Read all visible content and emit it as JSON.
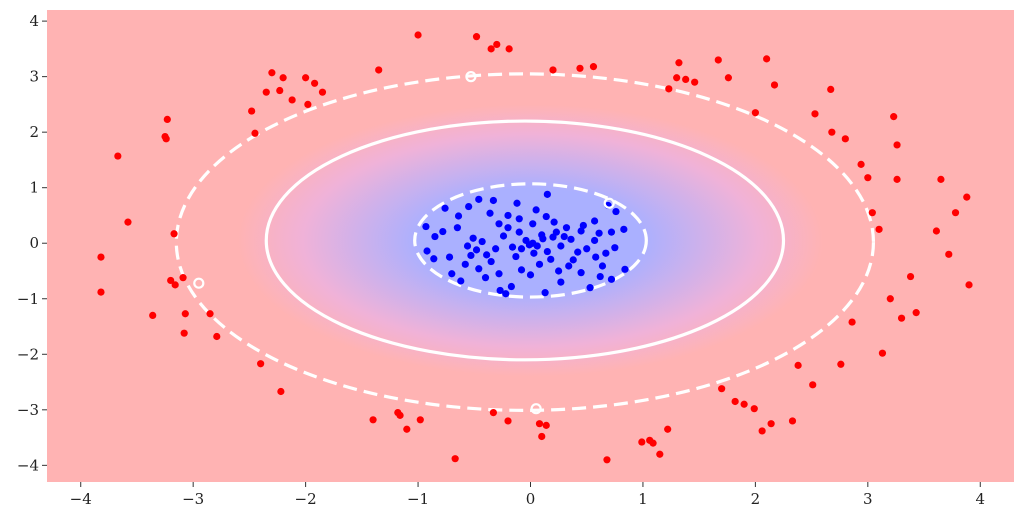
{
  "chart_data": {
    "type": "scatter",
    "title": "",
    "xlabel": "",
    "ylabel": "",
    "xlim": [
      -4.3,
      4.3
    ],
    "ylim": [
      -4.3,
      4.2
    ],
    "grid": true,
    "xticks": [
      -4,
      -3,
      -2,
      -1,
      0,
      1,
      2,
      3,
      4
    ],
    "yticks": [
      -4,
      -3,
      -2,
      -1,
      0,
      1,
      2,
      3,
      4
    ],
    "xtick_labels": [
      "−4",
      "−3",
      "−2",
      "−1",
      "0",
      "1",
      "2",
      "3",
      "4"
    ],
    "ytick_labels": [
      "−4",
      "−3",
      "−2",
      "−1",
      "0",
      "1",
      "2",
      "3",
      "4"
    ],
    "background": {
      "outer_color": "#ffb3b3",
      "inner_color": "#aab0ff",
      "description": "decision function shading, blue near origin fading to red"
    },
    "decision_boundary": {
      "type": "ellipse",
      "center": [
        -0.05,
        0.05
      ],
      "rx": 2.3,
      "ry": 2.15,
      "color": "#ffffff",
      "style": "solid"
    },
    "margins": [
      {
        "type": "ellipse",
        "center": [
          0.0,
          0.05
        ],
        "rx": 1.03,
        "ry": 1.02,
        "color": "#ffffff",
        "style": "dashed"
      },
      {
        "type": "ellipse",
        "center": [
          -0.05,
          0.02
        ],
        "rx": 3.1,
        "ry": 3.03,
        "color": "#ffffff",
        "style": "dashed"
      }
    ],
    "support_vectors": [
      [
        -0.53,
        3.0
      ],
      [
        -2.95,
        -0.72
      ],
      [
        0.05,
        -2.98
      ],
      [
        0.7,
        0.72
      ]
    ],
    "series": [
      {
        "color": "#0000ff",
        "points": [
          [
            -0.93,
            0.3
          ],
          [
            -0.76,
            0.63
          ],
          [
            -0.78,
            0.21
          ],
          [
            -0.55,
            0.66
          ],
          [
            -0.64,
            0.49
          ],
          [
            -0.85,
            0.12
          ],
          [
            -0.46,
            0.79
          ],
          [
            -0.12,
            0.72
          ],
          [
            0.15,
            0.88
          ],
          [
            -0.33,
            0.77
          ],
          [
            -0.36,
            0.54
          ],
          [
            -0.28,
            0.35
          ],
          [
            -0.2,
            0.28
          ],
          [
            -0.1,
            0.2
          ],
          [
            0.02,
            0.35
          ],
          [
            0.14,
            0.48
          ],
          [
            0.21,
            0.38
          ],
          [
            0.32,
            0.28
          ],
          [
            0.45,
            0.22
          ],
          [
            0.57,
            0.4
          ],
          [
            0.61,
            0.18
          ],
          [
            0.72,
            0.2
          ],
          [
            0.83,
            0.25
          ],
          [
            0.76,
            0.57
          ],
          [
            0.69,
            0.68
          ],
          [
            -0.92,
            -0.14
          ],
          [
            -0.86,
            -0.28
          ],
          [
            -0.72,
            -0.25
          ],
          [
            -0.58,
            -0.38
          ],
          [
            -0.7,
            -0.55
          ],
          [
            -0.62,
            -0.68
          ],
          [
            -0.46,
            -0.46
          ],
          [
            -0.4,
            -0.62
          ],
          [
            -0.28,
            -0.55
          ],
          [
            -0.27,
            -0.85
          ],
          [
            -0.17,
            -0.78
          ],
          [
            -0.08,
            -0.48
          ],
          [
            0.0,
            -0.57
          ],
          [
            0.08,
            -0.38
          ],
          [
            0.18,
            -0.29
          ],
          [
            0.25,
            -0.5
          ],
          [
            0.34,
            -0.41
          ],
          [
            0.45,
            -0.53
          ],
          [
            0.53,
            -0.8
          ],
          [
            0.64,
            -0.41
          ],
          [
            0.72,
            -0.65
          ],
          [
            0.84,
            -0.47
          ],
          [
            0.13,
            -0.89
          ],
          [
            -0.22,
            -0.91
          ],
          [
            -0.39,
            -0.21
          ],
          [
            -0.31,
            -0.1
          ],
          [
            -0.16,
            -0.07
          ],
          [
            -0.04,
            0.05
          ],
          [
            0.06,
            -0.05
          ],
          [
            0.11,
            0.08
          ],
          [
            0.2,
            0.11
          ],
          [
            0.27,
            -0.05
          ],
          [
            0.36,
            0.07
          ],
          [
            0.42,
            -0.16
          ],
          [
            0.5,
            -0.1
          ],
          [
            0.58,
            -0.25
          ],
          [
            0.67,
            -0.18
          ],
          [
            0.75,
            -0.08
          ],
          [
            -0.51,
            0.09
          ],
          [
            -0.43,
            0.03
          ],
          [
            -0.48,
            -0.12
          ],
          [
            -0.56,
            -0.05
          ],
          [
            -0.24,
            0.13
          ],
          [
            -0.13,
            -0.24
          ],
          [
            0.03,
            -0.18
          ],
          [
            0.15,
            -0.15
          ],
          [
            0.23,
            0.2
          ],
          [
            -0.01,
            -0.03
          ],
          [
            0.02,
            0.0
          ],
          [
            -0.08,
            -0.1
          ],
          [
            0.1,
            0.15
          ],
          [
            0.3,
            0.12
          ],
          [
            -0.35,
            -0.33
          ],
          [
            0.47,
            0.32
          ],
          [
            0.57,
            0.05
          ],
          [
            -0.65,
            0.28
          ],
          [
            -0.2,
            0.5
          ],
          [
            0.05,
            0.6
          ],
          [
            0.38,
            -0.3
          ],
          [
            -0.53,
            -0.22
          ],
          [
            0.62,
            -0.6
          ],
          [
            -0.1,
            0.44
          ],
          [
            0.27,
            -0.7
          ]
        ]
      },
      {
        "color": "#ff0000",
        "points": [
          [
            -1.0,
            3.75
          ],
          [
            -0.48,
            3.72
          ],
          [
            -0.3,
            3.58
          ],
          [
            -0.35,
            3.5
          ],
          [
            -0.19,
            3.5
          ],
          [
            0.2,
            3.12
          ],
          [
            0.44,
            3.15
          ],
          [
            0.56,
            3.18
          ],
          [
            1.32,
            3.25
          ],
          [
            1.3,
            2.98
          ],
          [
            1.38,
            2.95
          ],
          [
            1.46,
            2.9
          ],
          [
            1.67,
            3.3
          ],
          [
            1.76,
            2.98
          ],
          [
            2.1,
            3.32
          ],
          [
            2.17,
            2.85
          ],
          [
            1.23,
            2.78
          ],
          [
            -1.35,
            3.12
          ],
          [
            -2.3,
            3.07
          ],
          [
            -2.2,
            2.98
          ],
          [
            -2.0,
            2.98
          ],
          [
            -1.92,
            2.88
          ],
          [
            -1.85,
            2.72
          ],
          [
            -2.35,
            2.72
          ],
          [
            -2.23,
            2.75
          ],
          [
            -2.12,
            2.58
          ],
          [
            -1.98,
            2.5
          ],
          [
            -2.48,
            2.38
          ],
          [
            -2.45,
            1.98
          ],
          [
            -3.23,
            2.23
          ],
          [
            -3.25,
            1.92
          ],
          [
            -3.24,
            1.88
          ],
          [
            -3.67,
            1.57
          ],
          [
            -3.58,
            0.38
          ],
          [
            -3.17,
            0.17
          ],
          [
            -3.82,
            -0.25
          ],
          [
            -3.82,
            -0.88
          ],
          [
            -3.2,
            -0.67
          ],
          [
            -3.16,
            -0.75
          ],
          [
            -3.09,
            -0.62
          ],
          [
            -3.36,
            -1.3
          ],
          [
            -3.07,
            -1.27
          ],
          [
            -3.08,
            -1.62
          ],
          [
            -2.85,
            -1.27
          ],
          [
            -2.79,
            -1.68
          ],
          [
            -2.4,
            -2.17
          ],
          [
            -2.22,
            -2.67
          ],
          [
            -1.4,
            -3.18
          ],
          [
            -1.18,
            -3.05
          ],
          [
            -1.16,
            -3.1
          ],
          [
            -1.1,
            -3.35
          ],
          [
            -0.98,
            -3.18
          ],
          [
            -0.67,
            -3.88
          ],
          [
            -0.33,
            -3.05
          ],
          [
            -0.2,
            -3.2
          ],
          [
            0.08,
            -3.25
          ],
          [
            0.14,
            -3.28
          ],
          [
            0.1,
            -3.48
          ],
          [
            0.68,
            -3.9
          ],
          [
            0.99,
            -3.58
          ],
          [
            1.06,
            -3.55
          ],
          [
            1.09,
            -3.6
          ],
          [
            1.15,
            -3.8
          ],
          [
            1.22,
            -3.35
          ],
          [
            1.7,
            -2.62
          ],
          [
            1.82,
            -2.85
          ],
          [
            1.9,
            -2.9
          ],
          [
            1.99,
            -2.98
          ],
          [
            2.06,
            -3.38
          ],
          [
            2.14,
            -3.25
          ],
          [
            2.33,
            -3.2
          ],
          [
            2.38,
            -2.2
          ],
          [
            2.51,
            -2.55
          ],
          [
            2.76,
            -2.18
          ],
          [
            2.86,
            -1.42
          ],
          [
            3.13,
            -1.98
          ],
          [
            3.2,
            -1.0
          ],
          [
            3.3,
            -1.35
          ],
          [
            3.38,
            -0.6
          ],
          [
            3.43,
            -1.25
          ],
          [
            3.61,
            0.22
          ],
          [
            3.72,
            -0.2
          ],
          [
            3.78,
            0.55
          ],
          [
            3.88,
            0.83
          ],
          [
            3.9,
            -0.75
          ],
          [
            3.65,
            1.15
          ],
          [
            3.1,
            0.25
          ],
          [
            3.04,
            0.55
          ],
          [
            3.0,
            1.18
          ],
          [
            2.94,
            1.42
          ],
          [
            3.23,
            2.28
          ],
          [
            3.26,
            1.77
          ],
          [
            3.26,
            1.15
          ],
          [
            2.8,
            1.88
          ],
          [
            2.68,
            2.0
          ],
          [
            2.67,
            2.77
          ],
          [
            2.53,
            2.33
          ],
          [
            2.0,
            2.35
          ]
        ]
      }
    ]
  }
}
